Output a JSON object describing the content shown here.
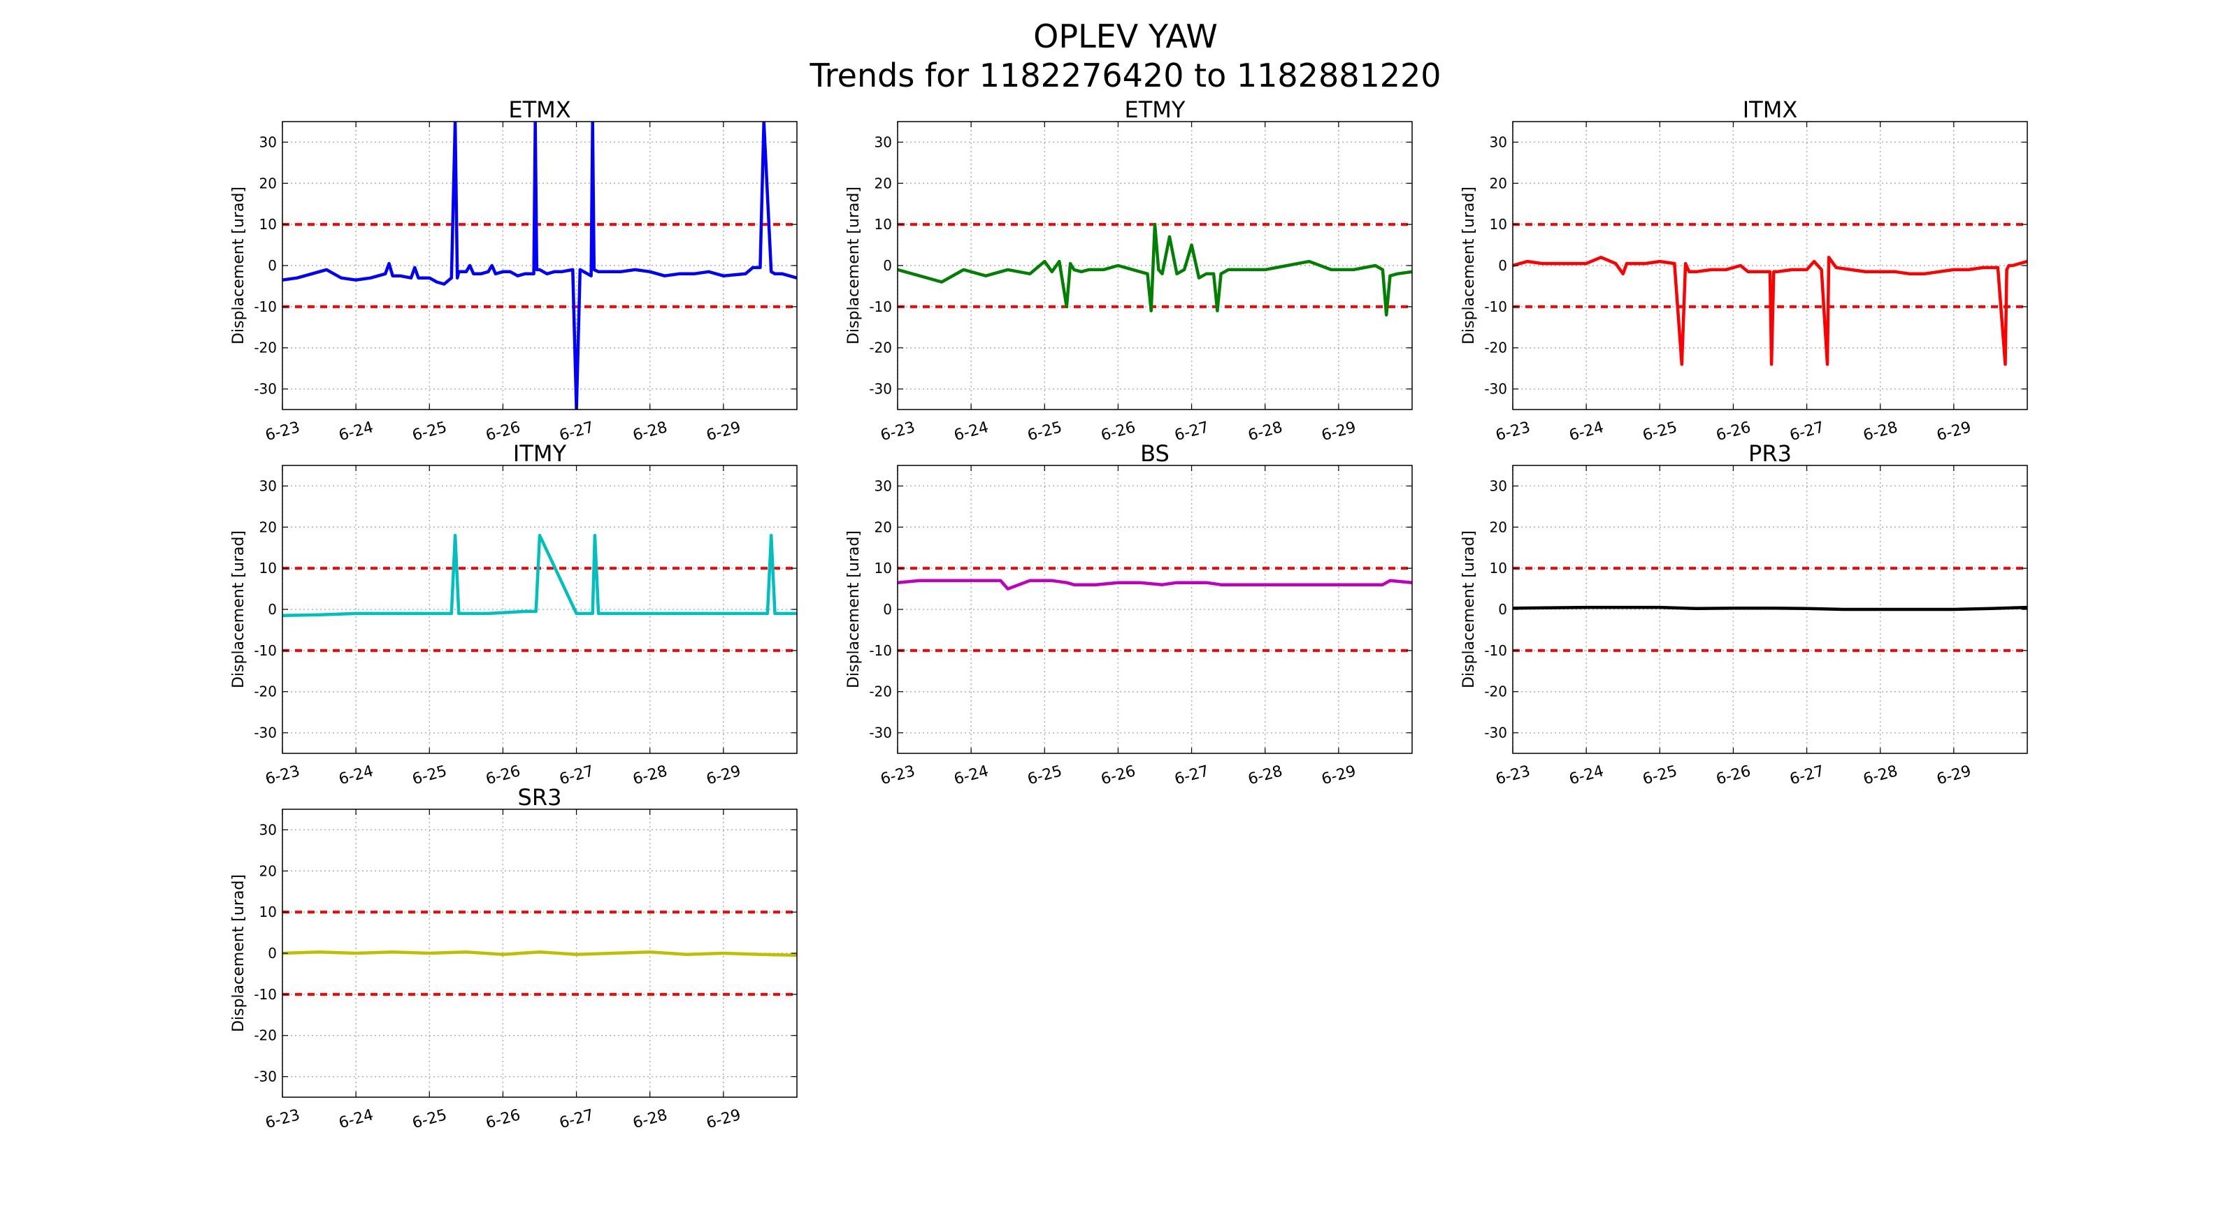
{
  "title": "OPLEV YAW",
  "subtitle": "Trends for 1182276420 to 1182881220",
  "chart_data": [
    {
      "type": "line",
      "title": "ETMX",
      "ylabel": "Displacement [urad]",
      "ylim": [
        -35,
        35
      ],
      "yticks": [
        30,
        20,
        10,
        0,
        -10,
        -20,
        -30
      ],
      "xticks": [
        "6-23",
        "6-24",
        "6-25",
        "6-26",
        "6-27",
        "6-28",
        "6-29"
      ],
      "xlim": [
        0,
        7
      ],
      "grid": true,
      "thresholds": [
        10,
        -10
      ],
      "threshold_color": "#ff0000",
      "series": [
        {
          "color": "#0000ff",
          "x": [
            0,
            0.2,
            0.4,
            0.6,
            0.8,
            1.0,
            1.2,
            1.4,
            1.45,
            1.5,
            1.6,
            1.75,
            1.8,
            1.85,
            2.0,
            2.1,
            2.2,
            2.3,
            2.35,
            2.38,
            2.4,
            2.5,
            2.55,
            2.6,
            2.7,
            2.8,
            2.85,
            2.9,
            3.0,
            3.1,
            3.2,
            3.3,
            3.42,
            3.44,
            3.46,
            3.5,
            3.6,
            3.7,
            3.8,
            3.95,
            4.0,
            4.05,
            4.2,
            4.22,
            4.24,
            4.3,
            4.4,
            4.6,
            4.8,
            5.0,
            5.2,
            5.4,
            5.6,
            5.8,
            6.0,
            6.3,
            6.4,
            6.5,
            6.55,
            6.65,
            6.7,
            6.8,
            7.0
          ],
          "y": [
            -3.5,
            -3,
            -2,
            -1,
            -3,
            -3.5,
            -3,
            -2,
            0.5,
            -2.5,
            -2.5,
            -3,
            -0.5,
            -3,
            -3,
            -4,
            -4.5,
            -3,
            35,
            -3,
            -1.5,
            -1.5,
            0,
            -2,
            -2,
            -1.5,
            0,
            -2,
            -1.5,
            -1.5,
            -2.5,
            -2,
            -2,
            35,
            -1,
            -1,
            -2,
            -1.5,
            -1.5,
            -1,
            -35,
            -1,
            -2.5,
            35,
            -1,
            -1.5,
            -1.5,
            -1.5,
            -1,
            -1.5,
            -2.5,
            -2,
            -2,
            -1.5,
            -2.5,
            -2,
            -0.5,
            -0.5,
            35,
            -1.5,
            -2,
            -2,
            -3
          ]
        }
      ]
    },
    {
      "type": "line",
      "title": "ETMY",
      "ylabel": "Displacement [urad]",
      "ylim": [
        -35,
        35
      ],
      "yticks": [
        30,
        20,
        10,
        0,
        -10,
        -20,
        -30
      ],
      "xticks": [
        "6-23",
        "6-24",
        "6-25",
        "6-26",
        "6-27",
        "6-28",
        "6-29"
      ],
      "xlim": [
        0,
        7
      ],
      "grid": true,
      "thresholds": [
        10,
        -10
      ],
      "threshold_color": "#ff0000",
      "series": [
        {
          "color": "#007f00",
          "x": [
            0,
            0.3,
            0.6,
            0.9,
            1.2,
            1.5,
            1.8,
            2.0,
            2.1,
            2.2,
            2.3,
            2.35,
            2.4,
            2.5,
            2.6,
            2.8,
            3.0,
            3.2,
            3.4,
            3.45,
            3.5,
            3.55,
            3.6,
            3.7,
            3.8,
            3.9,
            4.0,
            4.1,
            4.2,
            4.3,
            4.35,
            4.4,
            4.5,
            4.7,
            5.0,
            5.3,
            5.6,
            5.9,
            6.2,
            6.5,
            6.6,
            6.65,
            6.7,
            6.8,
            7.0
          ],
          "y": [
            -1,
            -2.5,
            -4,
            -1,
            -2.5,
            -1,
            -2,
            1,
            -1.5,
            1,
            -10,
            0.5,
            -1,
            -1.5,
            -1,
            -1,
            0,
            -1,
            -2,
            -11,
            10,
            -1,
            -2,
            7,
            -2,
            -1,
            5,
            -3,
            -2,
            -2,
            -11,
            -2,
            -1,
            -1,
            -1,
            0,
            1,
            -1,
            -1,
            0,
            -1,
            -12,
            -2.5,
            -2,
            -1.5
          ]
        }
      ]
    },
    {
      "type": "line",
      "title": "ITMX",
      "ylabel": "Displacement [urad]",
      "ylim": [
        -35,
        35
      ],
      "yticks": [
        30,
        20,
        10,
        0,
        -10,
        -20,
        -30
      ],
      "xticks": [
        "6-23",
        "6-24",
        "6-25",
        "6-26",
        "6-27",
        "6-28",
        "6-29"
      ],
      "xlim": [
        0,
        7
      ],
      "grid": true,
      "thresholds": [
        10,
        -10
      ],
      "threshold_color": "#ff0000",
      "series": [
        {
          "color": "#ff0000",
          "x": [
            0,
            0.2,
            0.4,
            0.6,
            0.8,
            1.0,
            1.2,
            1.4,
            1.5,
            1.55,
            1.6,
            1.8,
            2.0,
            2.2,
            2.3,
            2.35,
            2.4,
            2.5,
            2.7,
            2.9,
            3.1,
            3.2,
            3.5,
            3.52,
            3.55,
            3.6,
            3.8,
            4.0,
            4.1,
            4.2,
            4.28,
            4.3,
            4.4,
            4.6,
            4.8,
            5.0,
            5.2,
            5.4,
            5.6,
            5.8,
            6.0,
            6.2,
            6.4,
            6.6,
            6.7,
            6.72,
            6.75,
            6.8,
            7.0
          ],
          "y": [
            0,
            1,
            0.5,
            0.5,
            0.5,
            0.5,
            2,
            0.5,
            -2,
            0.5,
            0.5,
            0.5,
            1,
            0.5,
            -24,
            0.5,
            -1.5,
            -1.5,
            -1,
            -1,
            0,
            -1.5,
            -1.5,
            -24,
            -1.5,
            -1.5,
            -1,
            -1,
            1,
            -1,
            -24,
            2,
            -0.5,
            -1,
            -1.5,
            -1.5,
            -1.5,
            -2,
            -2,
            -1.5,
            -1,
            -1,
            -0.5,
            -0.5,
            -24,
            -1,
            0,
            0,
            1
          ]
        }
      ]
    },
    {
      "type": "line",
      "title": "ITMY",
      "ylabel": "Displacement [urad]",
      "ylim": [
        -35,
        35
      ],
      "yticks": [
        30,
        20,
        10,
        0,
        -10,
        -20,
        -30
      ],
      "xticks": [
        "6-23",
        "6-24",
        "6-25",
        "6-26",
        "6-27",
        "6-28",
        "6-29"
      ],
      "xlim": [
        0,
        7
      ],
      "grid": true,
      "thresholds": [
        10,
        -10
      ],
      "threshold_color": "#ff0000",
      "series": [
        {
          "color": "#00bfbf",
          "x": [
            0,
            0.5,
            1.0,
            1.5,
            2.0,
            2.3,
            2.35,
            2.4,
            2.8,
            3.3,
            3.45,
            3.5,
            4.0,
            4.22,
            4.25,
            4.3,
            4.5,
            5.0,
            5.5,
            6.0,
            6.5,
            6.6,
            6.65,
            6.7,
            7.0
          ],
          "y": [
            -1.5,
            -1.3,
            -1,
            -1,
            -1,
            -1,
            18,
            -1,
            -1,
            -0.5,
            -0.5,
            18,
            -1,
            -1,
            18,
            -1,
            -1,
            -1,
            -1,
            -1,
            -1,
            -1,
            18,
            -1,
            -1
          ]
        }
      ]
    },
    {
      "type": "line",
      "title": "BS",
      "ylabel": "Displacement [urad]",
      "ylim": [
        -35,
        35
      ],
      "yticks": [
        30,
        20,
        10,
        0,
        -10,
        -20,
        -30
      ],
      "xticks": [
        "6-23",
        "6-24",
        "6-25",
        "6-26",
        "6-27",
        "6-28",
        "6-29"
      ],
      "xlim": [
        0,
        7
      ],
      "grid": true,
      "thresholds": [
        10,
        -10
      ],
      "threshold_color": "#ff0000",
      "series": [
        {
          "color": "#bf00bf",
          "x": [
            0,
            0.3,
            0.6,
            1.0,
            1.4,
            1.5,
            1.8,
            2.1,
            2.3,
            2.4,
            2.7,
            3.0,
            3.3,
            3.6,
            3.8,
            4.0,
            4.2,
            4.4,
            4.7,
            5.0,
            5.4,
            5.8,
            6.2,
            6.6,
            6.7,
            7.0
          ],
          "y": [
            6.5,
            7,
            7,
            7,
            7,
            5,
            7,
            7,
            6.5,
            6,
            6,
            6.5,
            6.5,
            6,
            6.5,
            6.5,
            6.5,
            6,
            6,
            6,
            6,
            6,
            6,
            6,
            7,
            6.5
          ]
        }
      ]
    },
    {
      "type": "line",
      "title": "PR3",
      "ylabel": "Displacement [urad]",
      "ylim": [
        -35,
        35
      ],
      "yticks": [
        30,
        20,
        10,
        0,
        -10,
        -20,
        -30
      ],
      "xticks": [
        "6-23",
        "6-24",
        "6-25",
        "6-26",
        "6-27",
        "6-28",
        "6-29"
      ],
      "xlim": [
        0,
        7
      ],
      "grid": true,
      "thresholds": [
        10,
        -10
      ],
      "threshold_color": "#ff0000",
      "series": [
        {
          "color": "#000000",
          "x": [
            0,
            1,
            2,
            2.5,
            3,
            3.5,
            4,
            4.5,
            5,
            5.5,
            6,
            6.5,
            7
          ],
          "y": [
            0.3,
            0.5,
            0.5,
            0.2,
            0.3,
            0.3,
            0.2,
            0,
            0,
            0,
            0,
            0.2,
            0.5
          ]
        }
      ]
    },
    {
      "type": "line",
      "title": "SR3",
      "ylabel": "Displacement [urad]",
      "ylim": [
        -35,
        35
      ],
      "yticks": [
        30,
        20,
        10,
        0,
        -10,
        -20,
        -30
      ],
      "xticks": [
        "6-23",
        "6-24",
        "6-25",
        "6-26",
        "6-27",
        "6-28",
        "6-29"
      ],
      "xlim": [
        0,
        7
      ],
      "grid": true,
      "thresholds": [
        10,
        -10
      ],
      "threshold_color": "#ff0000",
      "series": [
        {
          "color": "#bfbf00",
          "x": [
            0,
            0.5,
            1,
            1.5,
            2,
            2.5,
            3,
            3.5,
            4,
            4.5,
            5,
            5.5,
            6,
            6.5,
            7
          ],
          "y": [
            0,
            0.3,
            0,
            0.3,
            0,
            0.3,
            -0.3,
            0.3,
            -0.3,
            0,
            0.3,
            -0.3,
            0,
            -0.3,
            -0.5
          ]
        }
      ]
    }
  ]
}
